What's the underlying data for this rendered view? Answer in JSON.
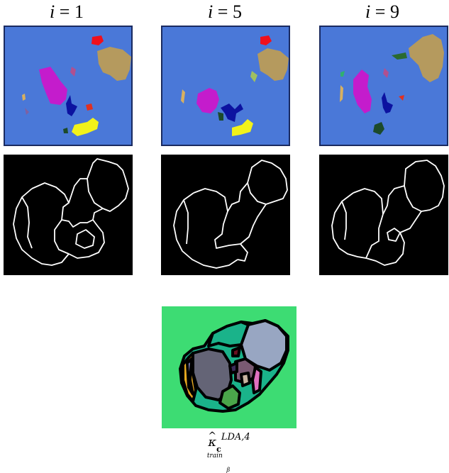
{
  "columns": [
    {
      "label_var": "i",
      "label_eq": " = ",
      "label_num": "1"
    },
    {
      "label_var": "i",
      "label_eq": " = ",
      "label_num": "5"
    },
    {
      "label_var": "i",
      "label_eq": " = ",
      "label_num": "9"
    }
  ],
  "colors": {
    "segmentation_background": "#4a78d8",
    "boundary_background": "#000000",
    "boundary_stroke": "#ffffff",
    "bottom_background": "#3ddc73",
    "blob_tan": "#b59a5e",
    "blob_magenta": "#c41ccc",
    "blob_navy": "#0c12a0",
    "blob_yellow": "#f2f21a",
    "blob_red": "#f0101c",
    "blob_darkgreen": "#1c4a2a"
  },
  "bottom": {
    "caption_kappa": "κ",
    "caption_sup": "LDA,4",
    "caption_sub": "c",
    "caption_subsup": "train",
    "caption_subsub": "β"
  }
}
